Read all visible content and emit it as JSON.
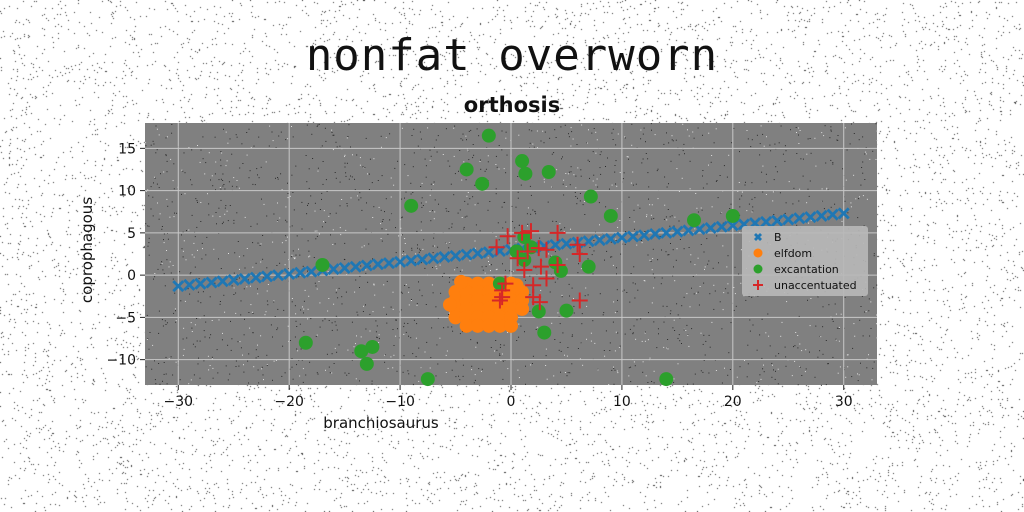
{
  "suptitle": "nonfat overworn",
  "chart_data": {
    "type": "scatter",
    "title": "orthosis",
    "xlabel": "branchiosaurus",
    "ylabel": "coprophagous",
    "xlim": [
      -33,
      33
    ],
    "ylim": [
      -13,
      18
    ],
    "xticks": [
      -30,
      -20,
      -10,
      0,
      10,
      20,
      30
    ],
    "yticks": [
      -10,
      -5,
      0,
      5,
      10,
      15
    ],
    "grid": true,
    "background": "#808080",
    "legend_position": "right",
    "series": [
      {
        "name": "B",
        "marker": "X",
        "color": "#1f77b4",
        "line": {
          "x_start": -30,
          "x_end": 30,
          "y_start": -1.3,
          "y_end": 7.3,
          "count": 61
        }
      },
      {
        "name": "elfdom",
        "marker": "o",
        "color": "#ff7f0e",
        "points": [
          [
            -5,
            -2
          ],
          [
            -5,
            -3
          ],
          [
            -5,
            -4
          ],
          [
            -5,
            -5
          ],
          [
            -4,
            -1
          ],
          [
            -4,
            -2
          ],
          [
            -4,
            -3
          ],
          [
            -4,
            -4
          ],
          [
            -4,
            -5
          ],
          [
            -4,
            -6
          ],
          [
            -3,
            -1
          ],
          [
            -3,
            -2
          ],
          [
            -3,
            -3
          ],
          [
            -3,
            -4
          ],
          [
            -3,
            -5
          ],
          [
            -3,
            -6
          ],
          [
            -2,
            -1
          ],
          [
            -2,
            -2
          ],
          [
            -2,
            -3
          ],
          [
            -2,
            -4
          ],
          [
            -2,
            -5
          ],
          [
            -2,
            -6
          ],
          [
            -1,
            -1
          ],
          [
            -1,
            -2
          ],
          [
            -1,
            -3
          ],
          [
            -1,
            -4
          ],
          [
            -1,
            -5
          ],
          [
            -1,
            -6
          ],
          [
            0,
            -1
          ],
          [
            0,
            -2
          ],
          [
            0,
            -3
          ],
          [
            0,
            -4
          ],
          [
            0,
            -5
          ],
          [
            0,
            -6
          ],
          [
            1,
            -2
          ],
          [
            1,
            -3
          ],
          [
            1,
            -4
          ],
          [
            -5.5,
            -3.5
          ],
          [
            0.5,
            -1.2
          ],
          [
            -4.5,
            -0.8
          ]
        ]
      },
      {
        "name": "excantation",
        "marker": "o",
        "color": "#2ca02c",
        "points": [
          [
            -2,
            16.5
          ],
          [
            1,
            13.5
          ],
          [
            1.3,
            12
          ],
          [
            -4,
            12.5
          ],
          [
            -2.6,
            10.8
          ],
          [
            3.4,
            12.2
          ],
          [
            7.2,
            9.3
          ],
          [
            -9,
            8.2
          ],
          [
            9,
            7
          ],
          [
            16.5,
            6.5
          ],
          [
            20,
            7
          ],
          [
            -17,
            1.2
          ],
          [
            -18.5,
            -8
          ],
          [
            -12.5,
            -8.5
          ],
          [
            -13,
            -10.5
          ],
          [
            -13.5,
            -9
          ],
          [
            -7.5,
            -12.3
          ],
          [
            14,
            -12.3
          ],
          [
            1.2,
            4.5
          ],
          [
            1.8,
            3.3
          ],
          [
            0.5,
            2.8
          ],
          [
            1.2,
            1.8
          ],
          [
            4,
            1.5
          ],
          [
            4.5,
            0.5
          ],
          [
            7,
            1
          ],
          [
            2.5,
            -4.3
          ],
          [
            5,
            -4.2
          ],
          [
            3,
            -6.8
          ],
          [
            -1,
            -1
          ]
        ]
      },
      {
        "name": "unaccentuated",
        "marker": "+",
        "color": "#d62728",
        "points": [
          [
            1,
            5
          ],
          [
            1.8,
            5.2
          ],
          [
            4.2,
            5
          ],
          [
            -0.3,
            4.6
          ],
          [
            6,
            3.6
          ],
          [
            -1.3,
            3.3
          ],
          [
            1.5,
            2.8
          ],
          [
            2.5,
            3.2
          ],
          [
            3.2,
            3
          ],
          [
            0.6,
            2
          ],
          [
            2.7,
            1
          ],
          [
            4.2,
            1.2
          ],
          [
            6.2,
            2.5
          ],
          [
            1.2,
            0.6
          ],
          [
            -0.5,
            -1
          ],
          [
            2,
            -1.2
          ],
          [
            3.2,
            -0.4
          ],
          [
            -0.8,
            -1.8
          ],
          [
            -0.8,
            -2.6
          ],
          [
            2,
            -2.6
          ],
          [
            2.6,
            -3.2
          ],
          [
            -1,
            -3
          ],
          [
            6.2,
            -3
          ]
        ]
      }
    ]
  }
}
